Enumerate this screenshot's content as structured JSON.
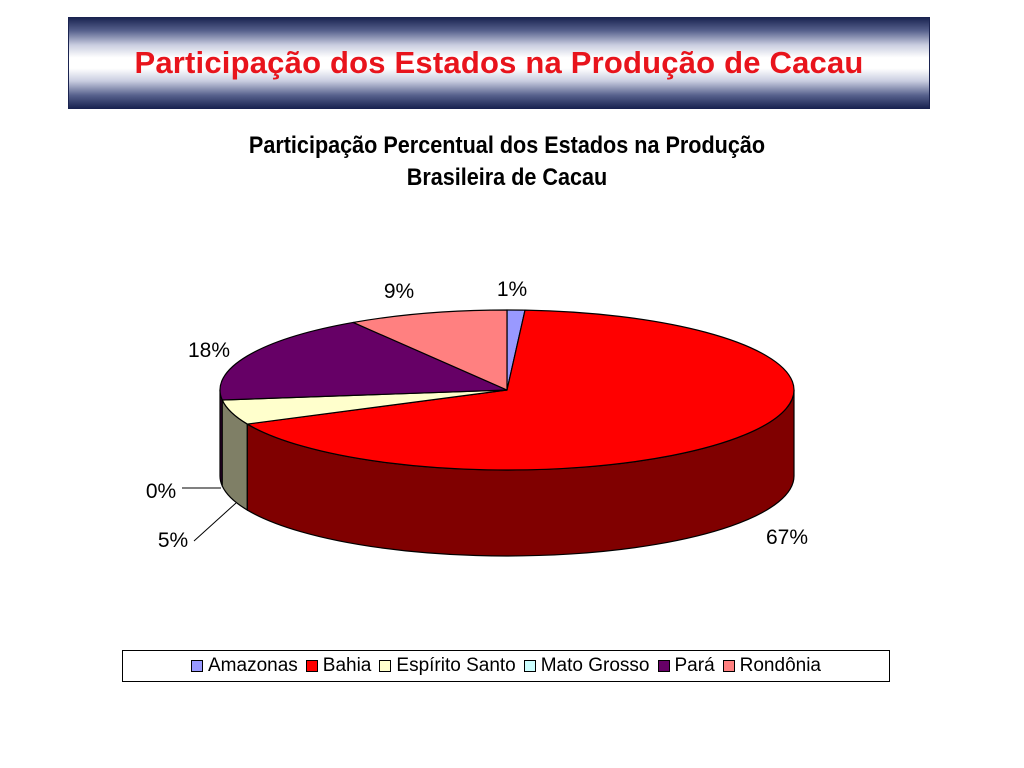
{
  "slide": {
    "title": "Participação dos Estados na Produção de Cacau"
  },
  "chart_data": {
    "type": "pie",
    "title_lines": [
      "Participação Percentual dos Estados na Produção",
      "Brasileira de Cacau"
    ],
    "categories": [
      "Amazonas",
      "Bahia",
      "Espírito Santo",
      "Mato Grosso",
      "Pará",
      "Rondônia"
    ],
    "values": [
      1,
      67,
      5,
      0,
      18,
      9
    ],
    "data_labels": [
      "1%",
      "67%",
      "5%",
      "0%",
      "18%",
      "9%"
    ],
    "colors": [
      "#9999ff",
      "#ff0000",
      "#ffffcc",
      "#ccffff",
      "#660066",
      "#ff8080"
    ],
    "side_colors": [
      "#4c4c80",
      "#800000",
      "#7f7f66",
      "#668080",
      "#330033",
      "#804040"
    ],
    "legend_position": "bottom",
    "style": "3d"
  }
}
